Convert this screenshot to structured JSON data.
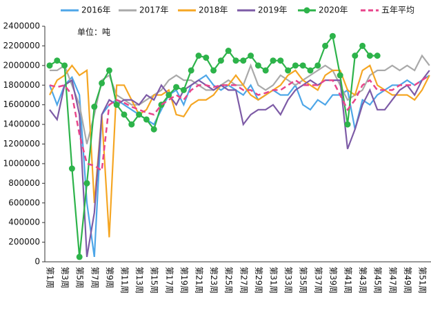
{
  "chart_data": {
    "type": "line",
    "annotation": "单位：吨",
    "categories": [
      "第1周",
      null,
      "第3周",
      null,
      "第5周",
      null,
      "第7周",
      null,
      "第9周",
      null,
      "第11周",
      null,
      "第13周",
      null,
      "第15周",
      null,
      "第17周",
      null,
      "第19周",
      null,
      "第21周",
      null,
      "第23周",
      null,
      "第25周",
      null,
      "第27周",
      null,
      "第29周",
      null,
      "第31周",
      null,
      "第33周",
      null,
      "第35周",
      null,
      "第37周",
      null,
      "第39周",
      null,
      "第41周",
      null,
      "第43周",
      null,
      "第45周",
      null,
      "第47周",
      null,
      "第49周",
      null,
      "第51周",
      null
    ],
    "ylim": [
      0,
      2400000
    ],
    "yticks": [
      0,
      200000,
      400000,
      600000,
      800000,
      1000000,
      1200000,
      1400000,
      1600000,
      1800000,
      2000000,
      2200000,
      2400000
    ],
    "series": [
      {
        "name": "2016年",
        "color": "#4da6e8",
        "values": [
          1800000,
          1600000,
          1800000,
          1880000,
          1700000,
          600000,
          50000,
          1500000,
          1600000,
          1650000,
          1600000,
          1550000,
          1500000,
          1450000,
          1400000,
          1550000,
          1700000,
          1750000,
          1600000,
          1800000,
          1850000,
          1900000,
          1800000,
          1750000,
          1800000,
          1750000,
          1700000,
          1800000,
          1650000,
          1700000,
          1750000,
          1700000,
          1700000,
          1800000,
          1600000,
          1550000,
          1650000,
          1600000,
          1700000,
          1700000,
          1750000,
          1350000,
          1650000,
          1600000,
          1700000,
          1750000,
          1800000,
          1800000,
          1850000,
          1800000,
          1850000,
          1900000
        ]
      },
      {
        "name": "2017年",
        "color": "#a9a9a9",
        "values": [
          1950000,
          1950000,
          2000000,
          1800000,
          1600000,
          1200000,
          1500000,
          1850000,
          1900000,
          1700000,
          1650000,
          1600000,
          1600000,
          1650000,
          1700000,
          1750000,
          1850000,
          1900000,
          1850000,
          1850000,
          1800000,
          1750000,
          1750000,
          1800000,
          1850000,
          1800000,
          1800000,
          2000000,
          1800000,
          1750000,
          1800000,
          1900000,
          1850000,
          1800000,
          1850000,
          1900000,
          1950000,
          2000000,
          1950000,
          1800000,
          1650000,
          1700000,
          1750000,
          1900000,
          1950000,
          1950000,
          2000000,
          1950000,
          2000000,
          1950000,
          2100000,
          2000000
        ]
      },
      {
        "name": "2018年",
        "color": "#f5a623",
        "values": [
          1700000,
          1850000,
          1900000,
          2000000,
          1900000,
          1950000,
          600000,
          1500000,
          250000,
          1800000,
          1800000,
          1650000,
          1500000,
          1550000,
          1700000,
          1700000,
          1750000,
          1500000,
          1480000,
          1600000,
          1650000,
          1650000,
          1700000,
          1800000,
          1800000,
          1900000,
          1800000,
          1700000,
          1650000,
          1700000,
          1750000,
          1800000,
          1900000,
          1950000,
          1850000,
          1800000,
          1750000,
          1900000,
          1950000,
          1950000,
          1750000,
          1700000,
          1950000,
          2000000,
          1800000,
          1750000,
          1700000,
          1700000,
          1700000,
          1650000,
          1750000,
          1900000
        ]
      },
      {
        "name": "2019年",
        "color": "#7d5ba6",
        "values": [
          1550000,
          1450000,
          1800000,
          1850000,
          1500000,
          50000,
          500000,
          1500000,
          1650000,
          1600000,
          1650000,
          1650000,
          1600000,
          1700000,
          1650000,
          1800000,
          1700000,
          1600000,
          1750000,
          1800000,
          1850000,
          1800000,
          1750000,
          1800000,
          1750000,
          1750000,
          1400000,
          1500000,
          1550000,
          1550000,
          1600000,
          1500000,
          1650000,
          1750000,
          1800000,
          1850000,
          1800000,
          1850000,
          1850000,
          1850000,
          1150000,
          1350000,
          1600000,
          1750000,
          1550000,
          1550000,
          1650000,
          1750000,
          1800000,
          1700000,
          1850000,
          1950000
        ]
      },
      {
        "name": "2020年",
        "color": "#2db34a",
        "markers": true,
        "values": [
          2000000,
          2050000,
          2000000,
          950000,
          50000,
          800000,
          1580000,
          1820000,
          1950000,
          1600000,
          1500000,
          1400000,
          1500000,
          1450000,
          1350000,
          1600000,
          1700000,
          1780000,
          1750000,
          1950000,
          2100000,
          2080000,
          1950000,
          2050000,
          2150000,
          2050000,
          2050000,
          2100000,
          2000000,
          1950000,
          2050000,
          2050000,
          1950000,
          2000000,
          2000000,
          1950000,
          2000000,
          2200000,
          2300000,
          1900000,
          1400000,
          2100000,
          2200000,
          2100000,
          2100000,
          null,
          null,
          null,
          null,
          null,
          null,
          null
        ]
      },
      {
        "name": "五年平均",
        "color": "#e8458b",
        "dashed": true,
        "values": [
          1800000,
          1780000,
          1800000,
          1700000,
          1300000,
          1000000,
          980000,
          930000,
          1600000,
          1650000,
          1620000,
          1580000,
          1550000,
          1520000,
          1500000,
          1600000,
          1650000,
          1700000,
          1650000,
          1750000,
          1800000,
          1800000,
          1780000,
          1800000,
          1800000,
          1800000,
          1750000,
          1750000,
          1700000,
          1720000,
          1750000,
          1750000,
          1800000,
          1850000,
          1800000,
          1800000,
          1800000,
          1850000,
          1850000,
          1700000,
          1550000,
          1650000,
          1800000,
          1850000,
          1750000,
          1750000,
          1750000,
          1800000,
          1800000,
          1800000,
          1850000,
          1900000
        ]
      }
    ]
  }
}
